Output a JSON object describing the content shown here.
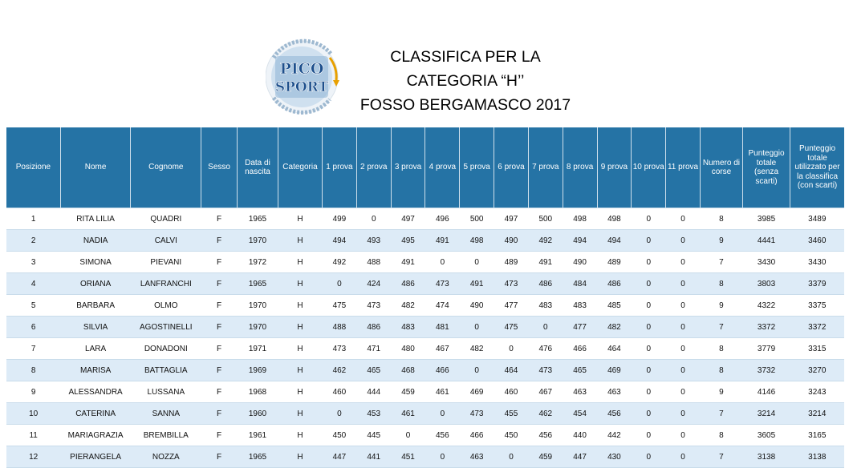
{
  "logo": {
    "word1": "PICO",
    "word2": "SPORT"
  },
  "title": {
    "line1": "CLASSIFICA PER LA",
    "line2": "CATEGORIA “H’’",
    "line3": "FOSSO BERGAMASCO 2017"
  },
  "table": {
    "headers": [
      "Posizione",
      "Nome",
      "Cognome",
      "Sesso",
      "Data di nascita",
      "Categoria",
      "1 prova",
      "2 prova",
      "3 prova",
      "4 prova",
      "5 prova",
      "6 prova",
      "7 prova",
      "8 prova",
      "9 prova",
      "10 prova",
      "11 prova",
      "Numero di corse",
      "Punteggio totale (senza scarti)",
      "Punteggio totale utilizzato per la classifica (con scarti)"
    ],
    "rows": [
      [
        "1",
        "RITA LILIA",
        "QUADRI",
        "F",
        "1965",
        "H",
        "499",
        "0",
        "497",
        "496",
        "500",
        "497",
        "500",
        "498",
        "498",
        "0",
        "0",
        "8",
        "3985",
        "3489"
      ],
      [
        "2",
        "NADIA",
        "CALVI",
        "F",
        "1970",
        "H",
        "494",
        "493",
        "495",
        "491",
        "498",
        "490",
        "492",
        "494",
        "494",
        "0",
        "0",
        "9",
        "4441",
        "3460"
      ],
      [
        "3",
        "SIMONA",
        "PIEVANI",
        "F",
        "1972",
        "H",
        "492",
        "488",
        "491",
        "0",
        "0",
        "489",
        "491",
        "490",
        "489",
        "0",
        "0",
        "7",
        "3430",
        "3430"
      ],
      [
        "4",
        "ORIANA",
        "LANFRANCHI",
        "F",
        "1965",
        "H",
        "0",
        "424",
        "486",
        "473",
        "491",
        "473",
        "486",
        "484",
        "486",
        "0",
        "0",
        "8",
        "3803",
        "3379"
      ],
      [
        "5",
        "BARBARA",
        "OLMO",
        "F",
        "1970",
        "H",
        "475",
        "473",
        "482",
        "474",
        "490",
        "477",
        "483",
        "483",
        "485",
        "0",
        "0",
        "9",
        "4322",
        "3375"
      ],
      [
        "6",
        "SILVIA",
        "AGOSTINELLI",
        "F",
        "1970",
        "H",
        "488",
        "486",
        "483",
        "481",
        "0",
        "475",
        "0",
        "477",
        "482",
        "0",
        "0",
        "7",
        "3372",
        "3372"
      ],
      [
        "7",
        "LARA",
        "DONADONI",
        "F",
        "1971",
        "H",
        "473",
        "471",
        "480",
        "467",
        "482",
        "0",
        "476",
        "466",
        "464",
        "0",
        "0",
        "8",
        "3779",
        "3315"
      ],
      [
        "8",
        "MARISA",
        "BATTAGLIA",
        "F",
        "1969",
        "H",
        "462",
        "465",
        "468",
        "466",
        "0",
        "464",
        "473",
        "465",
        "469",
        "0",
        "0",
        "8",
        "3732",
        "3270"
      ],
      [
        "9",
        "ALESSANDRA",
        "LUSSANA",
        "F",
        "1968",
        "H",
        "460",
        "444",
        "459",
        "461",
        "469",
        "460",
        "467",
        "463",
        "463",
        "0",
        "0",
        "9",
        "4146",
        "3243"
      ],
      [
        "10",
        "CATERINA",
        "SANNA",
        "F",
        "1960",
        "H",
        "0",
        "453",
        "461",
        "0",
        "473",
        "455",
        "462",
        "454",
        "456",
        "0",
        "0",
        "7",
        "3214",
        "3214"
      ],
      [
        "11",
        "MARIAGRAZIA",
        "BREMBILLA",
        "F",
        "1961",
        "H",
        "450",
        "445",
        "0",
        "456",
        "466",
        "450",
        "456",
        "440",
        "442",
        "0",
        "0",
        "8",
        "3605",
        "3165"
      ],
      [
        "12",
        "PIERANGELA",
        "NOZZA",
        "F",
        "1965",
        "H",
        "447",
        "441",
        "451",
        "0",
        "463",
        "0",
        "459",
        "447",
        "430",
        "0",
        "0",
        "7",
        "3138",
        "3138"
      ]
    ]
  }
}
